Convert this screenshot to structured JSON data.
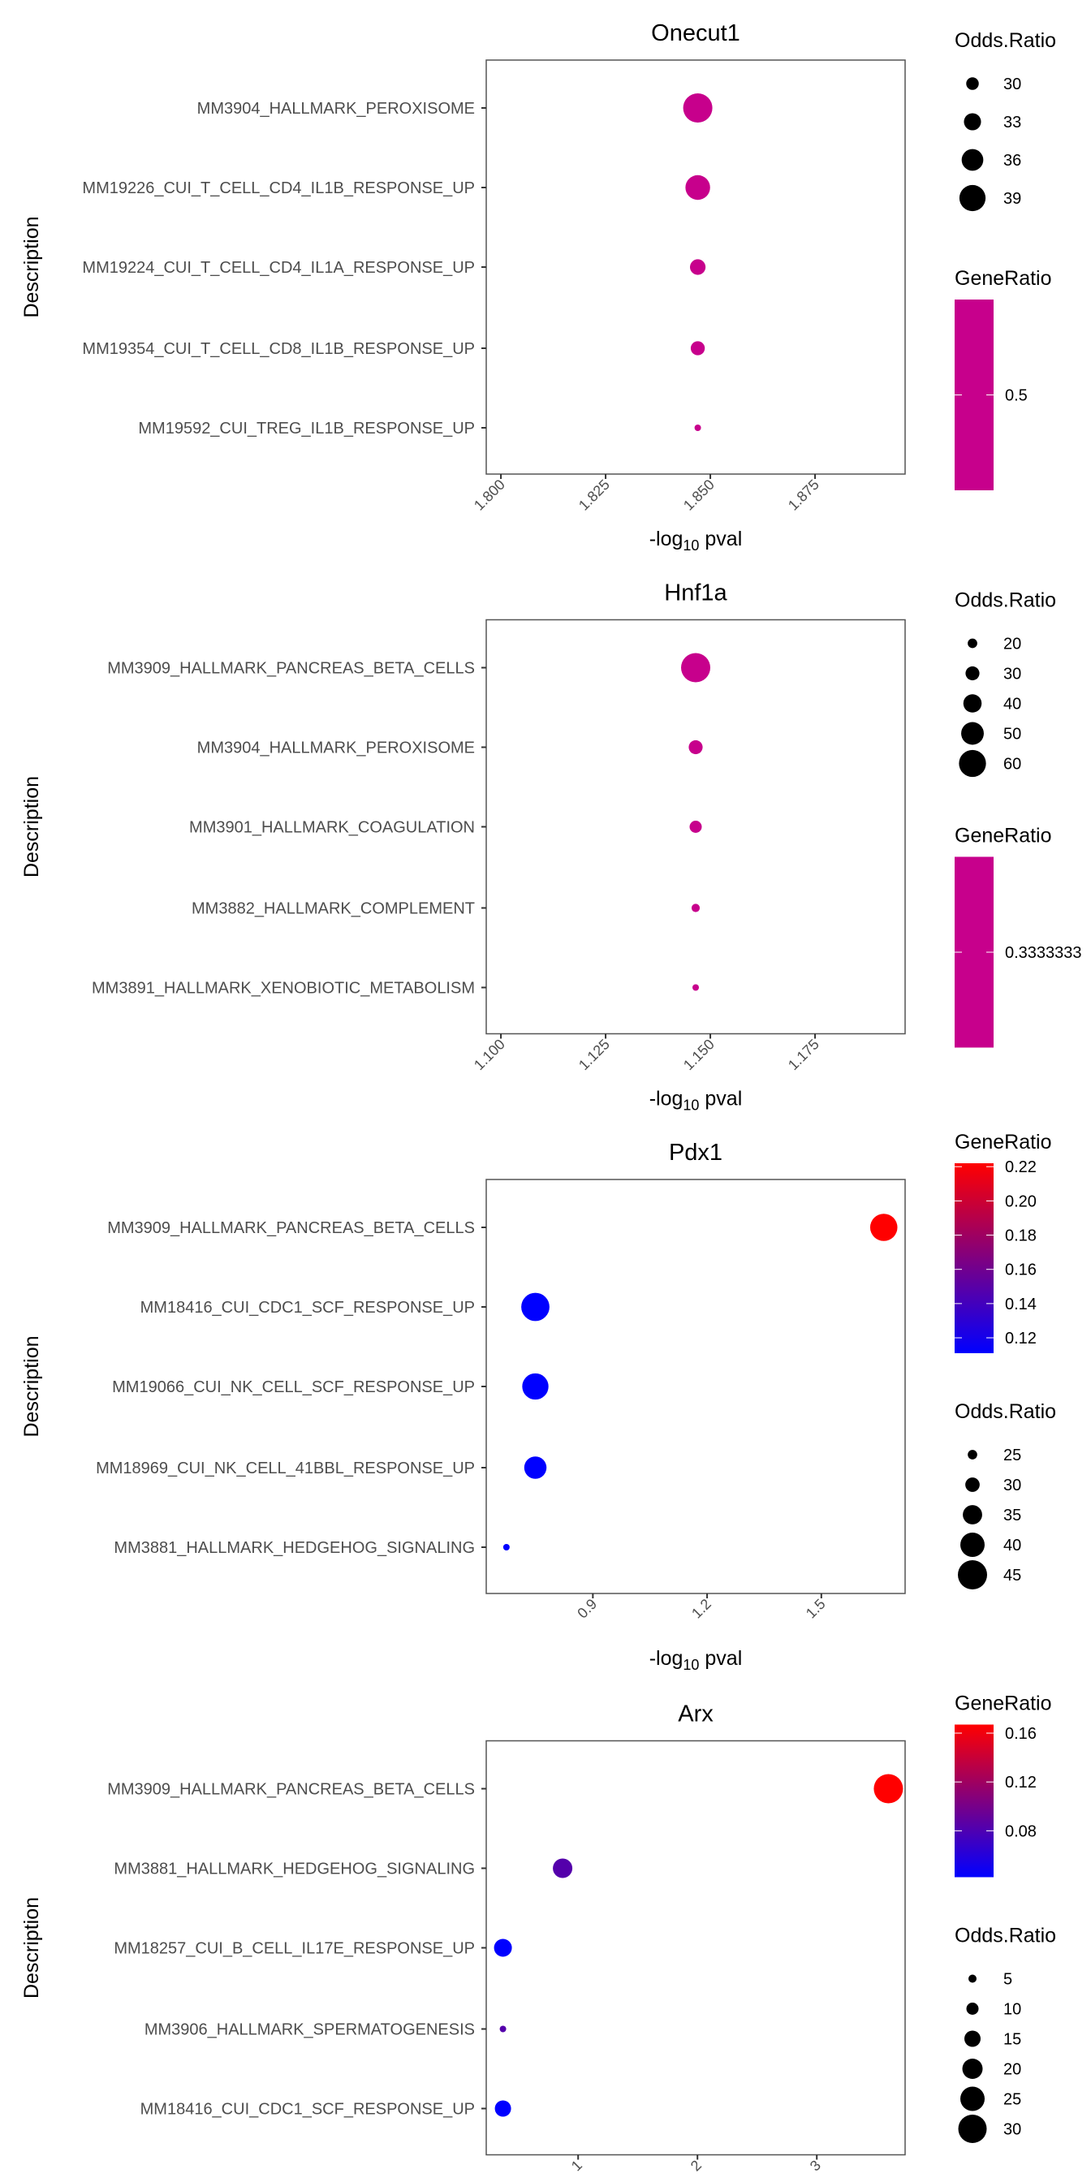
{
  "chart_data": [
    {
      "type": "scatter",
      "title": "Onecut1",
      "xlabel": "-log10 pval",
      "ylabel": "Description",
      "xlim": [
        1.7965,
        1.8965
      ],
      "xticks": [
        "1.800",
        "1.825",
        "1.850",
        "1.875"
      ],
      "xtick_values": [
        1.8,
        1.825,
        1.85,
        1.875
      ],
      "categories": [
        "MM3904_HALLMARK_PEROXISOME",
        "MM19226_CUI_T_CELL_CD4_IL1B_RESPONSE_UP",
        "MM19224_CUI_T_CELL_CD4_IL1A_RESPONSE_UP",
        "MM19354_CUI_T_CELL_CD8_IL1B_RESPONSE_UP",
        "MM19592_CUI_TREG_IL1B_RESPONSE_UP"
      ],
      "points": [
        {
          "x": 1.847,
          "odds_ratio": 41,
          "gene_ratio": 0.5
        },
        {
          "x": 1.847,
          "odds_ratio": 38,
          "gene_ratio": 0.5
        },
        {
          "x": 1.847,
          "odds_ratio": 32,
          "gene_ratio": 0.5
        },
        {
          "x": 1.847,
          "odds_ratio": 31,
          "gene_ratio": 0.5
        },
        {
          "x": 1.847,
          "odds_ratio": 26,
          "gene_ratio": 0.5
        }
      ],
      "legend_order": [
        "size",
        "color"
      ],
      "size_legend": {
        "title": "Odds.Ratio",
        "breaks": [
          30,
          33,
          36,
          39
        ]
      },
      "color_legend": {
        "title": "GeneRatio",
        "breaks": [
          0.5
        ],
        "labels": [
          "0.5"
        ],
        "range": [
          0.5,
          0.5
        ],
        "low": "#0000ff",
        "high": "#ff0000",
        "single": "#c7008c"
      }
    },
    {
      "type": "scatter",
      "title": "Hnf1a",
      "xlabel": "-log10 pval",
      "ylabel": "Description",
      "xlim": [
        1.0965,
        1.1965
      ],
      "xticks": [
        "1.100",
        "1.125",
        "1.150",
        "1.175"
      ],
      "xtick_values": [
        1.1,
        1.125,
        1.15,
        1.175
      ],
      "categories": [
        "MM3909_HALLMARK_PANCREAS_BETA_CELLS",
        "MM3904_HALLMARK_PEROXISOME",
        "MM3901_HALLMARK_COAGULATION",
        "MM3882_HALLMARK_COMPLEMENT",
        "MM3891_HALLMARK_XENOBIOTIC_METABOLISM"
      ],
      "points": [
        {
          "x": 1.1465,
          "odds_ratio": 65,
          "gene_ratio": 0.3333333
        },
        {
          "x": 1.1465,
          "odds_ratio": 30,
          "gene_ratio": 0.3333333
        },
        {
          "x": 1.1465,
          "odds_ratio": 26,
          "gene_ratio": 0.3333333
        },
        {
          "x": 1.1465,
          "odds_ratio": 17,
          "gene_ratio": 0.3333333
        },
        {
          "x": 1.1465,
          "odds_ratio": 13,
          "gene_ratio": 0.3333333
        }
      ],
      "legend_order": [
        "size",
        "color"
      ],
      "size_legend": {
        "title": "Odds.Ratio",
        "breaks": [
          20,
          30,
          40,
          50,
          60
        ]
      },
      "color_legend": {
        "title": "GeneRatio",
        "breaks": [
          0.3333333
        ],
        "labels": [
          "0.3333333"
        ],
        "range": [
          0.3333333,
          0.3333333
        ],
        "low": "#0000ff",
        "high": "#ff0000",
        "single": "#c7008c"
      }
    },
    {
      "type": "scatter",
      "title": "Pdx1",
      "xlabel": "-log10 pval",
      "ylabel": "Description",
      "xlim": [
        0.62,
        1.72
      ],
      "xticks": [
        "0.9",
        "1.2",
        "1.5"
      ],
      "xtick_values": [
        0.9,
        1.2,
        1.5
      ],
      "categories": [
        "MM3909_HALLMARK_PANCREAS_BETA_CELLS",
        "MM18416_CUI_CDC1_SCF_RESPONSE_UP",
        "MM19066_CUI_NK_CELL_SCF_RESPONSE_UP",
        "MM18969_CUI_NK_CELL_41BBL_RESPONSE_UP",
        "MM3881_HALLMARK_HEDGEHOG_SIGNALING"
      ],
      "points": [
        {
          "x": 1.664,
          "odds_ratio": 43,
          "gene_ratio": 0.222
        },
        {
          "x": 0.749,
          "odds_ratio": 44,
          "gene_ratio": 0.111
        },
        {
          "x": 0.749,
          "odds_ratio": 42,
          "gene_ratio": 0.111
        },
        {
          "x": 0.749,
          "odds_ratio": 38,
          "gene_ratio": 0.111
        },
        {
          "x": 0.673,
          "odds_ratio": 22,
          "gene_ratio": 0.111
        }
      ],
      "legend_order": [
        "color",
        "size"
      ],
      "size_legend": {
        "title": "Odds.Ratio",
        "breaks": [
          25,
          30,
          35,
          40,
          45
        ]
      },
      "color_legend": {
        "title": "GeneRatio",
        "breaks": [
          0.12,
          0.14,
          0.16,
          0.18,
          0.2,
          0.22
        ],
        "labels": [
          "0.12",
          "0.14",
          "0.16",
          "0.18",
          "0.20",
          "0.22"
        ],
        "range": [
          0.111,
          0.222
        ],
        "low": "#0000ff",
        "high": "#ff0000"
      }
    },
    {
      "type": "scatter",
      "title": "Arx",
      "xlabel": "-log10 pval",
      "ylabel": "Description",
      "xlim": [
        0.23,
        3.74
      ],
      "xticks": [
        "1",
        "2",
        "3"
      ],
      "xtick_values": [
        1,
        2,
        3
      ],
      "categories": [
        "MM3909_HALLMARK_PANCREAS_BETA_CELLS",
        "MM3881_HALLMARK_HEDGEHOG_SIGNALING",
        "MM18257_CUI_B_CELL_IL17E_RESPONSE_UP",
        "MM3906_HALLMARK_SPERMATOGENESIS",
        "MM18416_CUI_CDC1_SCF_RESPONSE_UP"
      ],
      "points": [
        {
          "x": 3.6,
          "odds_ratio": 31,
          "gene_ratio": 0.167
        },
        {
          "x": 0.87,
          "odds_ratio": 19,
          "gene_ratio": 0.083
        },
        {
          "x": 0.37,
          "odds_ratio": 17,
          "gene_ratio": 0.042
        },
        {
          "x": 0.37,
          "odds_ratio": 3,
          "gene_ratio": 0.083
        },
        {
          "x": 0.37,
          "odds_ratio": 15,
          "gene_ratio": 0.042
        }
      ],
      "legend_order": [
        "color",
        "size"
      ],
      "size_legend": {
        "title": "Odds.Ratio",
        "breaks": [
          5,
          10,
          15,
          20,
          25,
          30
        ]
      },
      "color_legend": {
        "title": "GeneRatio",
        "breaks": [
          0.08,
          0.12,
          0.16
        ],
        "labels": [
          "0.08",
          "0.12",
          "0.16"
        ],
        "range": [
          0.042,
          0.167
        ],
        "low": "#0000ff",
        "high": "#ff0000"
      }
    }
  ]
}
